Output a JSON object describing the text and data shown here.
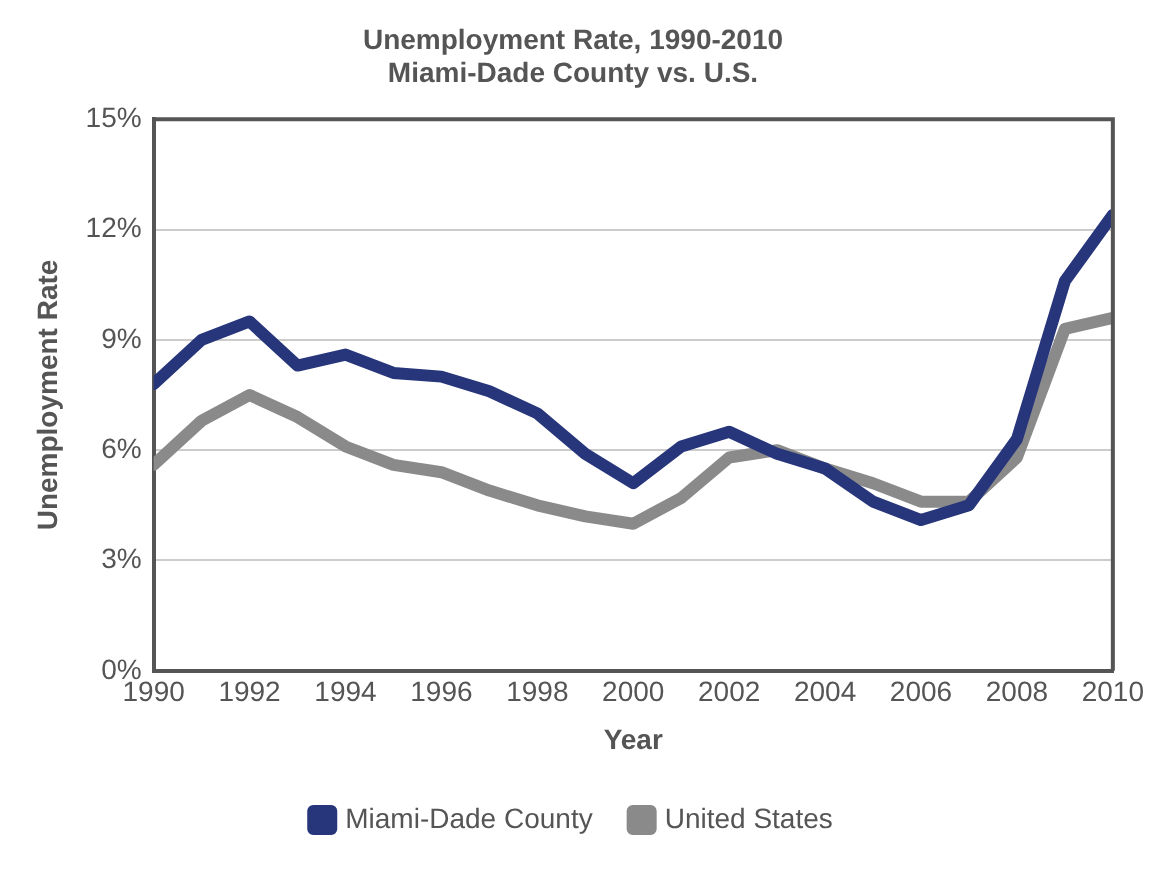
{
  "chart_data": {
    "type": "line",
    "title": "Unemployment Rate, 1990-2010",
    "subtitle": "Miami-Dade County vs. U.S.",
    "xlabel": "Year",
    "ylabel": "Unemployment Rate",
    "x": [
      1990,
      1991,
      1992,
      1993,
      1994,
      1995,
      1996,
      1997,
      1998,
      1999,
      2000,
      2001,
      2002,
      2003,
      2004,
      2005,
      2006,
      2007,
      2008,
      2009,
      2010
    ],
    "series": [
      {
        "name": "Miami-Dade County",
        "color": "#27357a",
        "values": [
          7.8,
          9.0,
          9.5,
          8.3,
          8.6,
          8.1,
          8.0,
          7.6,
          7.0,
          5.9,
          5.1,
          6.1,
          6.5,
          5.9,
          5.5,
          4.6,
          4.1,
          4.5,
          6.3,
          10.6,
          12.4
        ]
      },
      {
        "name": "United States",
        "color": "#8a8a8a",
        "values": [
          5.6,
          6.8,
          7.5,
          6.9,
          6.1,
          5.6,
          5.4,
          4.9,
          4.5,
          4.2,
          4.0,
          4.7,
          5.8,
          6.0,
          5.5,
          5.1,
          4.6,
          4.6,
          5.8,
          9.3,
          9.6
        ]
      }
    ],
    "xlim": [
      1990,
      2010
    ],
    "xticks": [
      1990,
      1992,
      1994,
      1996,
      1998,
      2000,
      2002,
      2004,
      2006,
      2008,
      2010
    ],
    "ylim": [
      0,
      15
    ],
    "yticks": [
      {
        "value": 0,
        "label": "0%"
      },
      {
        "value": 3,
        "label": "3%"
      },
      {
        "value": 6,
        "label": "6%"
      },
      {
        "value": 9,
        "label": "9%"
      },
      {
        "value": 12,
        "label": "12%"
      },
      {
        "value": 15,
        "label": "15%"
      }
    ],
    "grid": "y",
    "legend": "bottom",
    "marker": "none",
    "line_style": "solid"
  }
}
